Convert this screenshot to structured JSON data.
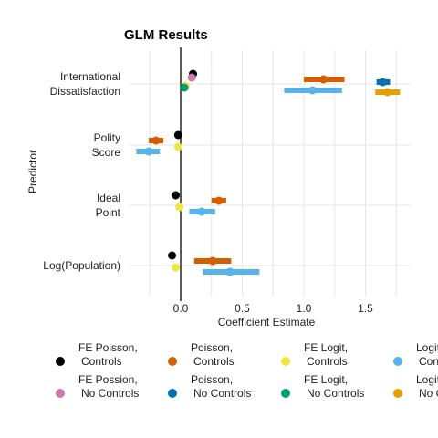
{
  "chart_data": {
    "type": "scatter",
    "title": "GLM Results",
    "xlabel": "Coefficient Estimate",
    "ylabel": "Predictor",
    "xlim": [
      -0.28,
      1.9
    ],
    "xticks": [
      "0.0",
      "0.5",
      "1.0",
      "1.5"
    ],
    "xtick_values": [
      0,
      0.5,
      1.0,
      1.5
    ],
    "grid": true,
    "legend_position": "bottom",
    "categories": [
      {
        "id": "intl",
        "lines": [
          "International",
          "Dissatisfaction"
        ]
      },
      {
        "id": "polity",
        "lines": [
          "Polity",
          "Score"
        ]
      },
      {
        "id": "ideal",
        "lines": [
          "Ideal",
          "Point"
        ]
      },
      {
        "id": "logpop",
        "lines": [
          "Log(Population)"
        ]
      }
    ],
    "series": [
      {
        "name": [
          "FE Poisson,",
          "Controls"
        ],
        "color": "#000000",
        "points": [
          {
            "category": 0,
            "estimate": 0.1,
            "lo": 0.08,
            "hi": 0.12
          },
          {
            "category": 1,
            "estimate": -0.02,
            "lo": -0.03,
            "hi": -0.01
          },
          {
            "category": 2,
            "estimate": -0.04,
            "lo": -0.05,
            "hi": -0.03
          },
          {
            "category": 3,
            "estimate": -0.07,
            "lo": -0.09,
            "hi": -0.05
          }
        ]
      },
      {
        "name": [
          "FE Possion,",
          "No Controls"
        ],
        "color": "#CC79A7",
        "points": [
          {
            "category": 0,
            "estimate": 0.09,
            "lo": 0.08,
            "hi": 0.1
          }
        ]
      },
      {
        "name": [
          "Poisson,",
          "Controls"
        ],
        "color": "#D55E00",
        "points": [
          {
            "category": 0,
            "estimate": 1.16,
            "lo": 1.0,
            "hi": 1.33
          },
          {
            "category": 1,
            "estimate": -0.2,
            "lo": -0.26,
            "hi": -0.14
          },
          {
            "category": 2,
            "estimate": 0.31,
            "lo": 0.25,
            "hi": 0.37
          },
          {
            "category": 3,
            "estimate": 0.26,
            "lo": 0.11,
            "hi": 0.41
          }
        ]
      },
      {
        "name": [
          "Poisson,",
          "No Controls"
        ],
        "color": "#0072B2",
        "points": [
          {
            "category": 0,
            "estimate": 1.64,
            "lo": 1.59,
            "hi": 1.7
          }
        ]
      },
      {
        "name": [
          "FE Logit,",
          "Controls"
        ],
        "color": "#F0E442",
        "points": [
          {
            "category": 0,
            "estimate": 0.04,
            "lo": 0.02,
            "hi": 0.06
          },
          {
            "category": 1,
            "estimate": -0.02,
            "lo": -0.03,
            "hi": -0.01
          },
          {
            "category": 2,
            "estimate": -0.01,
            "lo": -0.02,
            "hi": 0.0
          },
          {
            "category": 3,
            "estimate": -0.04,
            "lo": -0.05,
            "hi": -0.03
          }
        ]
      },
      {
        "name": [
          "FE Logit,",
          "No Controls"
        ],
        "color": "#009E73",
        "points": [
          {
            "category": 0,
            "estimate": 0.03,
            "lo": 0.02,
            "hi": 0.04
          }
        ]
      },
      {
        "name": [
          "Logit,",
          "Controls"
        ],
        "color": "#56B4E9",
        "points": [
          {
            "category": 0,
            "estimate": 1.07,
            "lo": 0.84,
            "hi": 1.31
          },
          {
            "category": 1,
            "estimate": -0.26,
            "lo": -0.36,
            "hi": -0.17
          },
          {
            "category": 2,
            "estimate": 0.17,
            "lo": 0.07,
            "hi": 0.28
          },
          {
            "category": 3,
            "estimate": 0.4,
            "lo": 0.18,
            "hi": 0.64
          }
        ]
      },
      {
        "name": [
          "Logit,",
          "No Controls"
        ],
        "color": "#E69F00",
        "points": [
          {
            "category": 0,
            "estimate": 1.68,
            "lo": 1.58,
            "hi": 1.78
          }
        ]
      }
    ]
  }
}
